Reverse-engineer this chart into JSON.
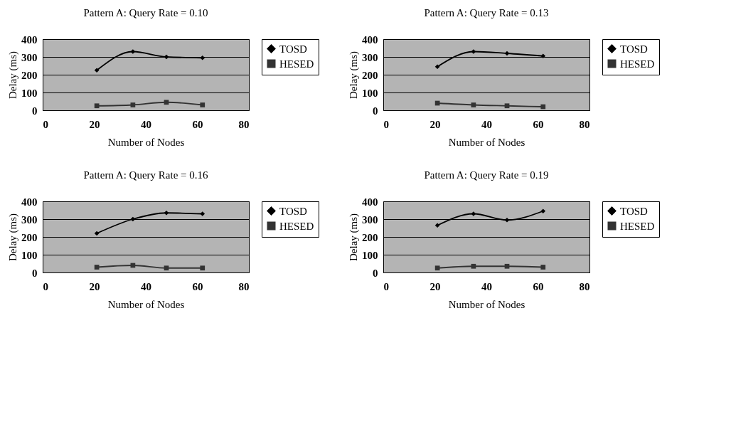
{
  "chart_data": [
    {
      "type": "line",
      "title": "Pattern A: Query Rate = 0.10",
      "xlabel": "Number of Nodes",
      "ylabel": "Delay (ms)",
      "x": [
        21,
        35,
        48,
        62
      ],
      "xlim": [
        0,
        80
      ],
      "xticks": [
        0,
        20,
        40,
        60,
        80
      ],
      "ylim": [
        0,
        400
      ],
      "yticks": [
        0,
        100,
        200,
        300,
        400
      ],
      "grid": "y",
      "legend": "right",
      "series": [
        {
          "name": "TOSD",
          "color": "#000000",
          "marker": "diamond",
          "values": [
            225,
            330,
            300,
            295
          ]
        },
        {
          "name": "HESED",
          "color": "#333333",
          "marker": "square",
          "values": [
            25,
            30,
            45,
            30
          ]
        }
      ]
    },
    {
      "type": "line",
      "title": "Pattern A: Query Rate = 0.13",
      "xlabel": "Number of Nodes",
      "ylabel": "Delay (ms)",
      "x": [
        21,
        35,
        48,
        62
      ],
      "xlim": [
        0,
        80
      ],
      "xticks": [
        0,
        20,
        40,
        60,
        80
      ],
      "ylim": [
        0,
        400
      ],
      "yticks": [
        0,
        100,
        200,
        300,
        400
      ],
      "grid": "y",
      "legend": "right",
      "series": [
        {
          "name": "TOSD",
          "color": "#000000",
          "marker": "diamond",
          "values": [
            245,
            330,
            320,
            305
          ]
        },
        {
          "name": "HESED",
          "color": "#333333",
          "marker": "square",
          "values": [
            40,
            30,
            25,
            20
          ]
        }
      ]
    },
    {
      "type": "line",
      "title": "Pattern A: Query Rate = 0.16",
      "xlabel": "Number of Nodes",
      "ylabel": "Delay (ms)",
      "x": [
        21,
        35,
        48,
        62
      ],
      "xlim": [
        0,
        80
      ],
      "xticks": [
        0,
        20,
        40,
        60,
        80
      ],
      "ylim": [
        0,
        400
      ],
      "yticks": [
        0,
        100,
        200,
        300,
        400
      ],
      "grid": "y",
      "legend": "right",
      "series": [
        {
          "name": "TOSD",
          "color": "#000000",
          "marker": "diamond",
          "values": [
            220,
            300,
            335,
            330
          ]
        },
        {
          "name": "HESED",
          "color": "#333333",
          "marker": "square",
          "values": [
            30,
            40,
            25,
            25
          ]
        }
      ]
    },
    {
      "type": "line",
      "title": "Pattern A: Query Rate = 0.19",
      "xlabel": "Number of Nodes",
      "ylabel": "Delay (ms)",
      "x": [
        21,
        35,
        48,
        62
      ],
      "xlim": [
        0,
        80
      ],
      "xticks": [
        0,
        20,
        40,
        60,
        80
      ],
      "ylim": [
        0,
        400
      ],
      "yticks": [
        0,
        100,
        200,
        300,
        400
      ],
      "grid": "y",
      "legend": "right",
      "series": [
        {
          "name": "TOSD",
          "color": "#000000",
          "marker": "diamond",
          "values": [
            265,
            330,
            295,
            345
          ]
        },
        {
          "name": "HESED",
          "color": "#333333",
          "marker": "square",
          "values": [
            25,
            35,
            35,
            30
          ]
        }
      ]
    }
  ]
}
